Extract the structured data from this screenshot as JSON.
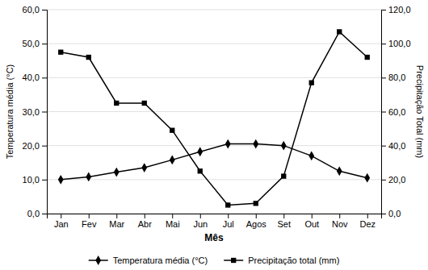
{
  "chart_data": {
    "type": "line",
    "categories": [
      "Jan",
      "Fev",
      "Mar",
      "Abr",
      "Mai",
      "Jun",
      "Jul",
      "Agos",
      "Set",
      "Out",
      "Nov",
      "Dez"
    ],
    "series": [
      {
        "name": "Temperatura média (°C)",
        "color": "#000000",
        "marker": "diamond",
        "values": [
          10.0,
          10.8,
          12.2,
          13.5,
          15.8,
          18.2,
          20.5,
          20.5,
          20.0,
          17.0,
          12.5,
          10.5
        ]
      },
      {
        "name": "Precipitação total (mm)",
        "color": "#000000",
        "marker": "square",
        "axis": "y2",
        "values": [
          95.0,
          92.0,
          65.0,
          65.0,
          49.0,
          25.0,
          5.0,
          6.0,
          22.0,
          77.0,
          107.0,
          92.0
        ]
      }
    ],
    "xlabel": "Mês",
    "ylabel": "Temperatura média (°C)",
    "y2label": "Precipitação Total (mm)",
    "ylim": [
      0,
      60
    ],
    "yticks": [
      {
        "value": 0.0,
        "label": "0,0"
      },
      {
        "value": 10.0,
        "label": "10,0"
      },
      {
        "value": 20.0,
        "label": "20,0"
      },
      {
        "value": 30.0,
        "label": "30,0"
      },
      {
        "value": 40.0,
        "label": "40,0"
      },
      {
        "value": 50.0,
        "label": "50,0"
      },
      {
        "value": 60.0,
        "label": "60,0"
      }
    ],
    "y2lim": [
      0,
      120
    ],
    "y2ticks": [
      {
        "value": 0.0,
        "label": "0,0"
      },
      {
        "value": 20.0,
        "label": "20,0"
      },
      {
        "value": 40.0,
        "label": "40,0"
      },
      {
        "value": 60.0,
        "label": "60,0"
      },
      {
        "value": 80.0,
        "label": "80,0"
      },
      {
        "value": 100.0,
        "label": "100,0"
      },
      {
        "value": 120.0,
        "label": "120,0"
      }
    ],
    "grid": true,
    "legend": "bottom"
  }
}
